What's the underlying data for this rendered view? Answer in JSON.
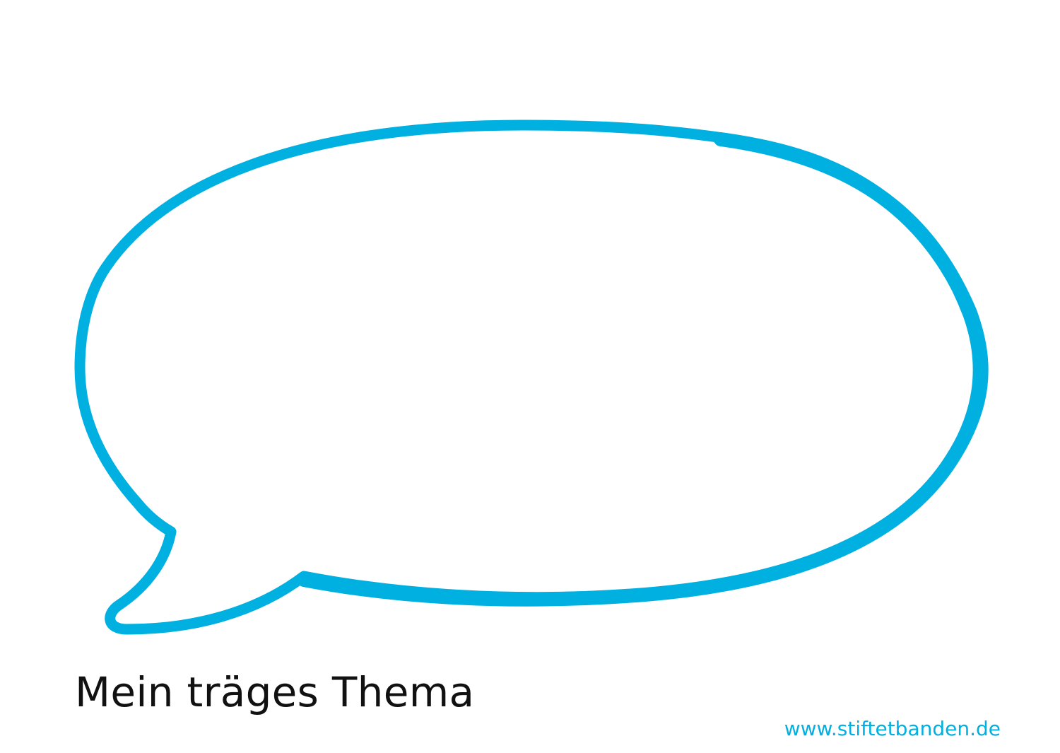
{
  "caption": "Mein träges Thema",
  "footer": {
    "url": "www.stiftetbanden.de"
  },
  "colors": {
    "accent": "#00b0e0",
    "text": "#111111",
    "background": "#ffffff"
  },
  "icons": {
    "bubble": "speech-bubble-icon"
  }
}
